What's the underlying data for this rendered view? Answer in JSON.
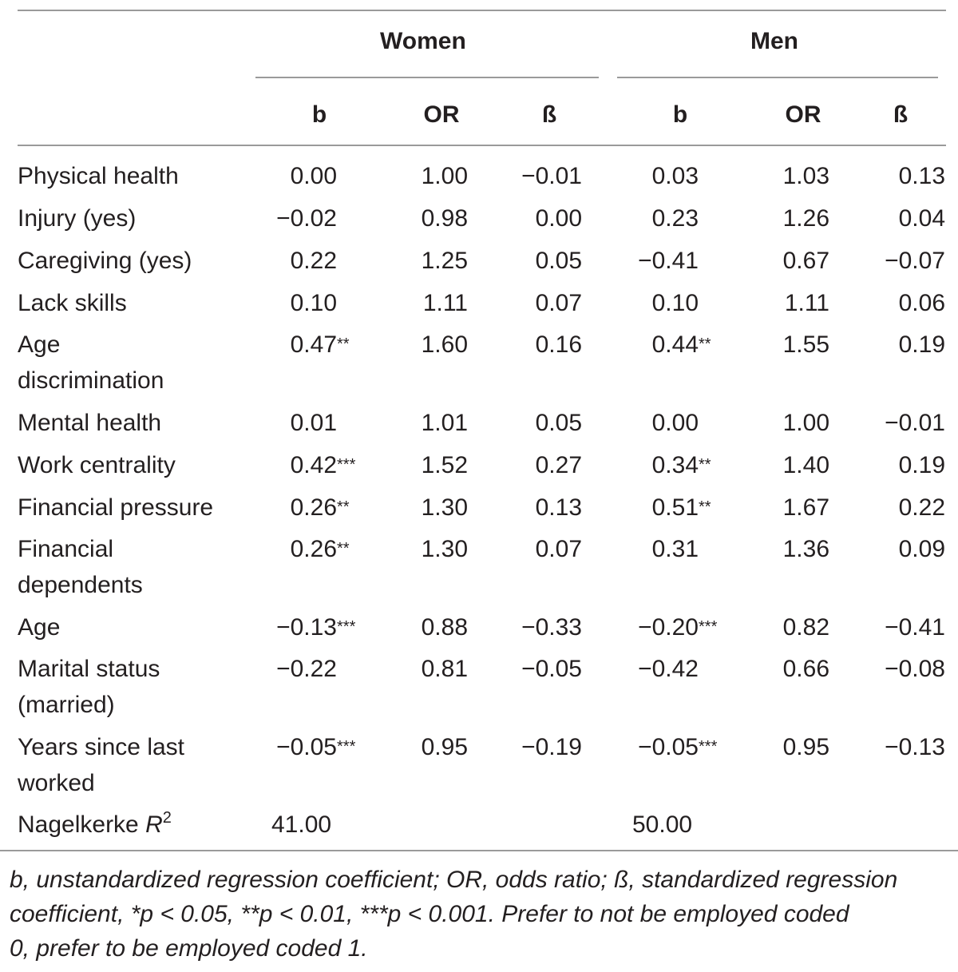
{
  "header": {
    "group_women": "Women",
    "group_men": "Men",
    "col_b": "b",
    "col_or": "OR",
    "col_beta": "ß"
  },
  "rows": [
    {
      "label": [
        "Physical health"
      ],
      "w_b": "0.00",
      "w_b_sig": "",
      "w_or": "1.00",
      "w_beta": "−0.01",
      "m_b": "0.03",
      "m_b_sig": "",
      "m_or": "1.03",
      "m_beta": "0.13"
    },
    {
      "label": [
        "Injury (yes)"
      ],
      "w_b": "−0.02",
      "w_b_sig": "",
      "w_or": "0.98",
      "w_beta": "0.00",
      "m_b": "0.23",
      "m_b_sig": "",
      "m_or": "1.26",
      "m_beta": "0.04"
    },
    {
      "label": [
        "Caregiving (yes)"
      ],
      "w_b": "0.22",
      "w_b_sig": "",
      "w_or": "1.25",
      "w_beta": "0.05",
      "m_b": "−0.41",
      "m_b_sig": "",
      "m_or": "0.67",
      "m_beta": "−0.07"
    },
    {
      "label": [
        "Lack skills"
      ],
      "w_b": "0.10",
      "w_b_sig": "",
      "w_or": "1.11",
      "w_beta": "0.07",
      "m_b": "0.10",
      "m_b_sig": "",
      "m_or": "1.11",
      "m_beta": "0.06"
    },
    {
      "label": [
        "Age",
        "discrimination"
      ],
      "w_b": "0.47",
      "w_b_sig": "**",
      "w_or": "1.60",
      "w_beta": "0.16",
      "m_b": "0.44",
      "m_b_sig": "**",
      "m_or": "1.55",
      "m_beta": "0.19"
    },
    {
      "label": [
        "Mental health"
      ],
      "w_b": "0.01",
      "w_b_sig": "",
      "w_or": "1.01",
      "w_beta": "0.05",
      "m_b": "0.00",
      "m_b_sig": "",
      "m_or": "1.00",
      "m_beta": "−0.01"
    },
    {
      "label": [
        "Work centrality"
      ],
      "w_b": "0.42",
      "w_b_sig": "***",
      "w_or": "1.52",
      "w_beta": "0.27",
      "m_b": "0.34",
      "m_b_sig": "**",
      "m_or": "1.40",
      "m_beta": "0.19"
    },
    {
      "label": [
        "Financial pressure"
      ],
      "w_b": "0.26",
      "w_b_sig": "**",
      "w_or": "1.30",
      "w_beta": "0.13",
      "m_b": "0.51",
      "m_b_sig": "**",
      "m_or": "1.67",
      "m_beta": "0.22"
    },
    {
      "label": [
        "Financial",
        "dependents"
      ],
      "w_b": "0.26",
      "w_b_sig": "**",
      "w_or": "1.30",
      "w_beta": "0.07",
      "m_b": "0.31",
      "m_b_sig": "",
      "m_or": "1.36",
      "m_beta": "0.09"
    },
    {
      "label": [
        "Age"
      ],
      "w_b": "−0.13",
      "w_b_sig": "***",
      "w_or": "0.88",
      "w_beta": "−0.33",
      "m_b": "−0.20",
      "m_b_sig": "***",
      "m_or": "0.82",
      "m_beta": "−0.41"
    },
    {
      "label": [
        "Marital status",
        "(married)"
      ],
      "w_b": "−0.22",
      "w_b_sig": "",
      "w_or": "0.81",
      "w_beta": "−0.05",
      "m_b": "−0.42",
      "m_b_sig": "",
      "m_or": "0.66",
      "m_beta": "−0.08"
    },
    {
      "label": [
        "Years since last",
        "worked"
      ],
      "w_b": "−0.05",
      "w_b_sig": "***",
      "w_or": "0.95",
      "w_beta": "−0.19",
      "m_b": "−0.05",
      "m_b_sig": "***",
      "m_or": "0.95",
      "m_beta": "−0.13"
    }
  ],
  "r2_row": {
    "label": "Nagelkerke",
    "label_symbol": "R",
    "label_sup": "2",
    "women": "41.00",
    "men": "50.00"
  },
  "footnote": {
    "lines": [
      "b, unstandardized regression coefficient; OR, odds ratio; ß, standardized regression",
      "coefficient, *p < 0.05, **p < 0.01, ***p < 0.001. Prefer to not be employed coded",
      "0, prefer to be employed coded 1."
    ]
  }
}
